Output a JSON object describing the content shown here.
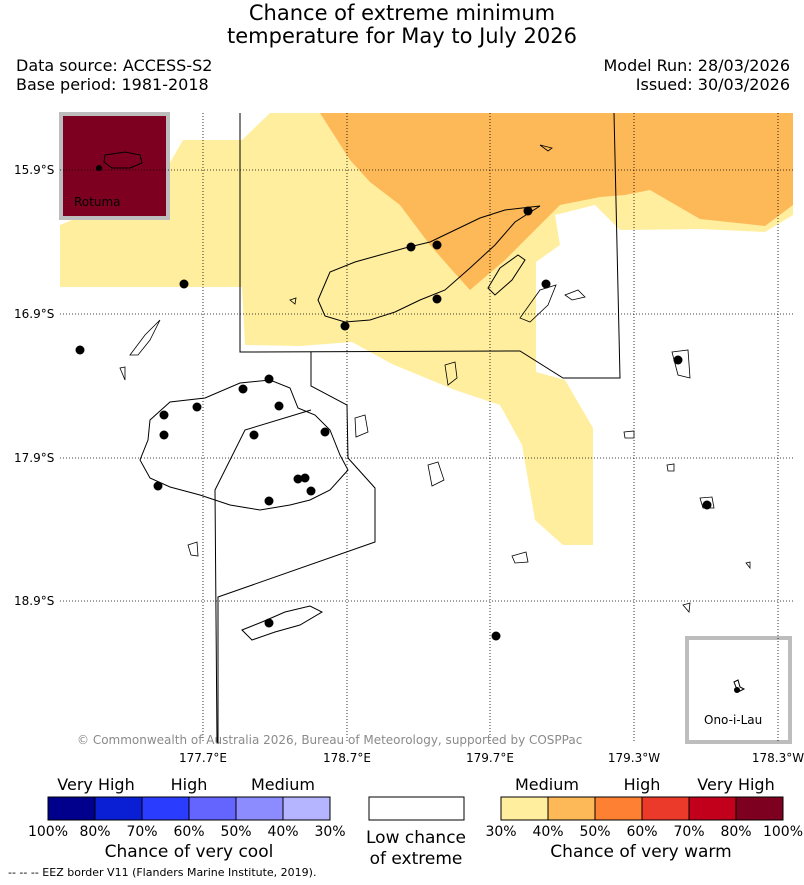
{
  "title_line1": "Chance of extreme minimum",
  "title_line2": "temperature for May to July 2026",
  "data_source": "Data source: ACCESS-S2",
  "base_period": "Base period: 1981-2018",
  "model_run": "Model Run: 28/03/2026",
  "issued": "Issued: 30/03/2026",
  "lat_labels": [
    "15.9°S",
    "16.9°S",
    "17.9°S",
    "18.9°S"
  ],
  "lon_labels": [
    "177.7°E",
    "178.7°E",
    "179.7°E",
    "179.3°W",
    "178.3°W"
  ],
  "inset_rotuma": "Rotuma",
  "inset_ono": "Ono-i-Lau",
  "copyright": "© Commonwealth of Australia 2026, Bureau of Meteorology, supported by COSPPac",
  "legend": {
    "cool_heads": [
      "Very High",
      "High",
      "Medium"
    ],
    "cool_ticks": [
      "100%",
      "80%",
      "70%",
      "60%",
      "50%",
      "40%",
      "30%"
    ],
    "cool_caption": "Chance of very cool",
    "low_caption_1": "Low chance",
    "low_caption_2": "of extreme",
    "warm_heads": [
      "Medium",
      "High",
      "Very High"
    ],
    "warm_ticks": [
      "30%",
      "40%",
      "50%",
      "60%",
      "70%",
      "80%",
      "100%"
    ],
    "warm_caption": "Chance of very warm",
    "cool_colors": [
      "#00008c",
      "#0a1fd4",
      "#2a3dff",
      "#6464ff",
      "#8c8cff",
      "#b4b4ff"
    ],
    "warm_colors": [
      "#ffee9e",
      "#fdb858",
      "#fe8032",
      "#eb3a2a",
      "#c2001c",
      "#7e0020"
    ],
    "low_color": "#ffffff"
  },
  "footnote": "-- -- -- EEZ border V11 (Flanders Marine Institute, 2019).",
  "colors": {
    "medium_warm_light": "#ffee9e",
    "warm_40_50": "#fdb858",
    "rotuma_inset": "#7e0020"
  }
}
